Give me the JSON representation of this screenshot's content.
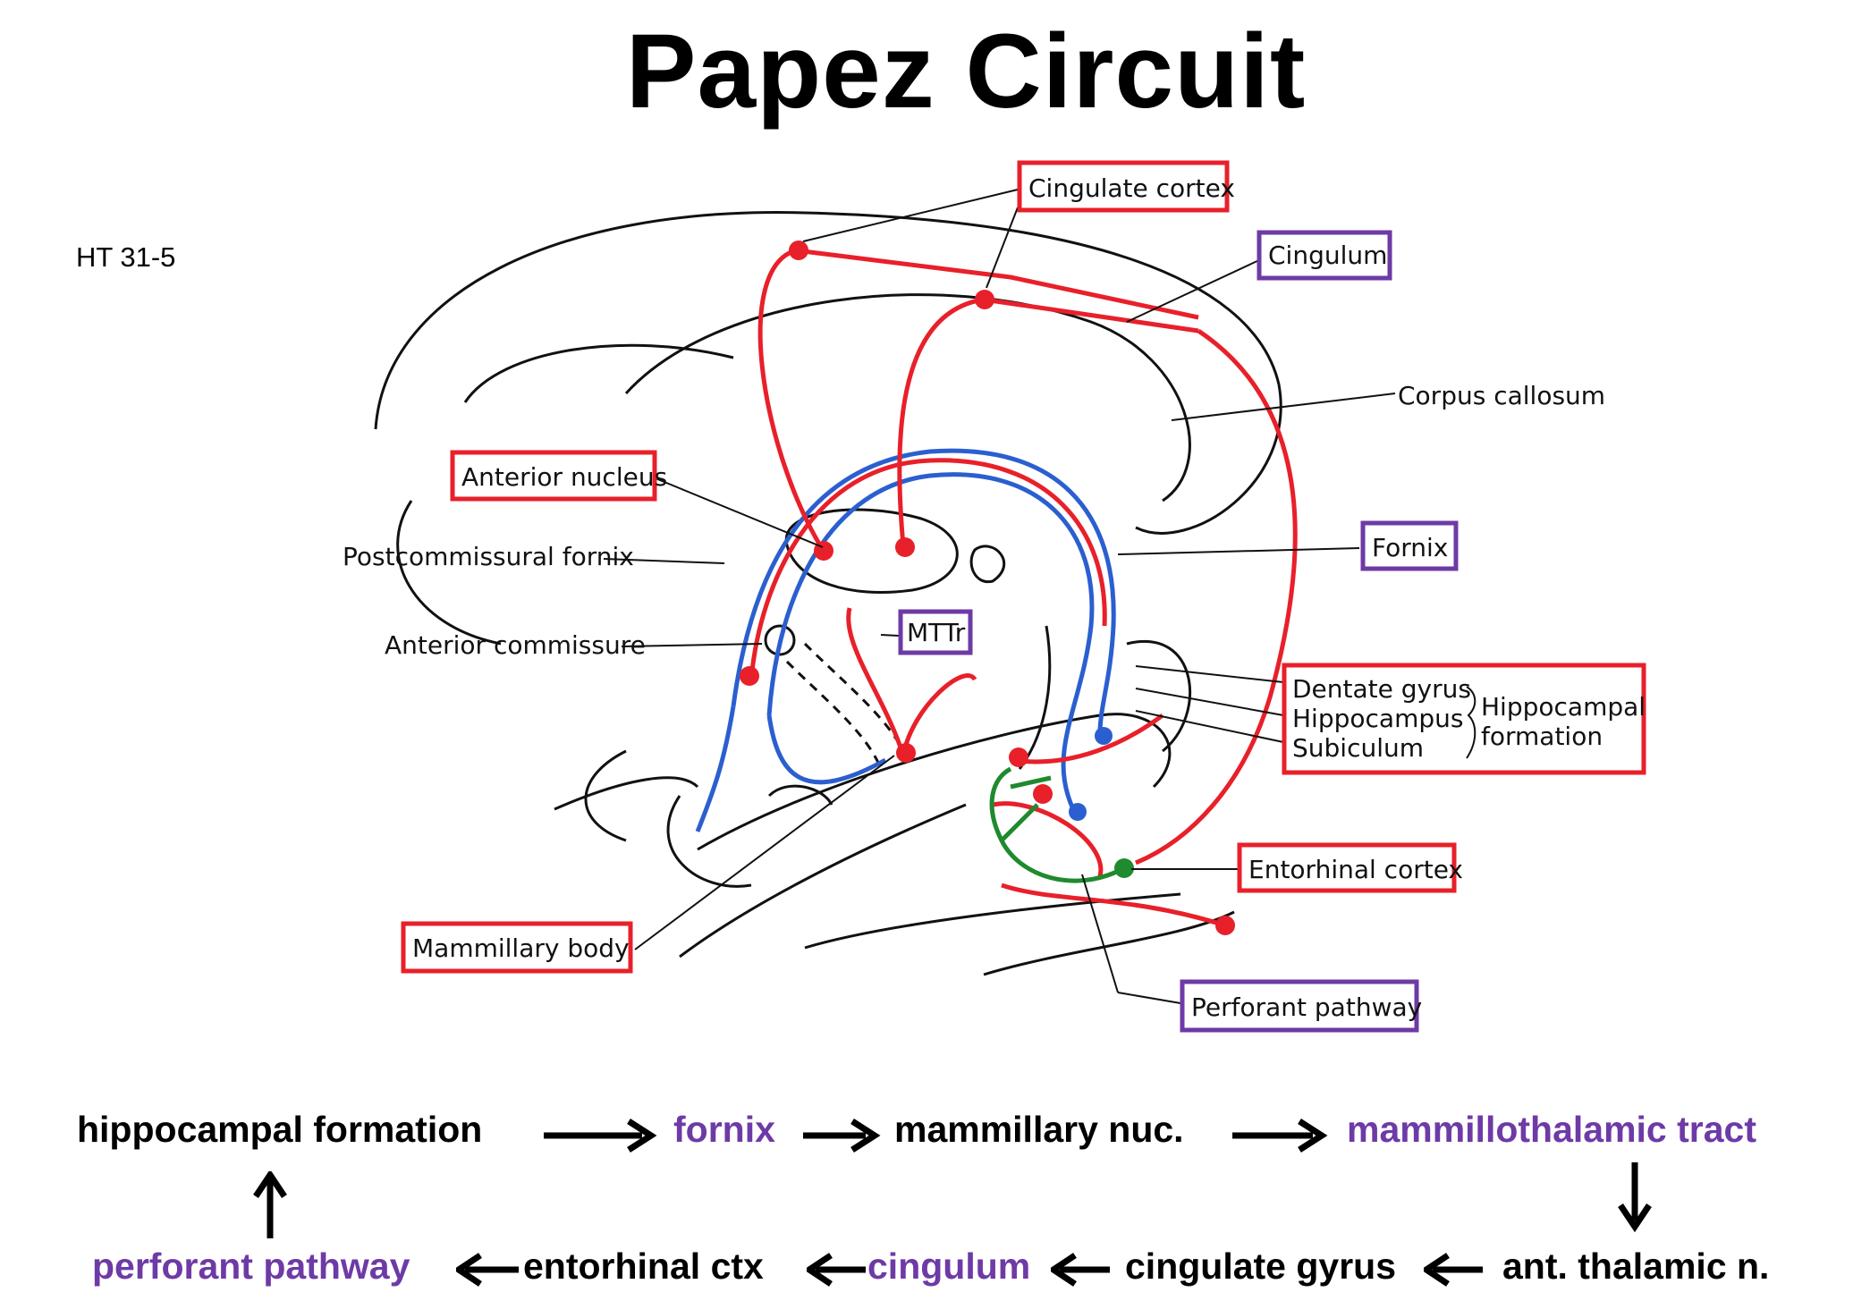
{
  "title": "Papez Circuit",
  "ref": "HT 31-5",
  "colors": {
    "red": "#e8202a",
    "purple": "#6e3aa6",
    "blue": "#2b5fd0",
    "green": "#1f8a2e"
  },
  "labels": {
    "cingulate_cortex": "Cingulate cortex",
    "cingulum": "Cingulum",
    "corpus_callosum": "Corpus callosum",
    "anterior_nucleus": "Anterior nucleus",
    "postcommissural_fornix": "Postcommissural fornix",
    "fornix": "Fornix",
    "mttr": "MTTr",
    "anterior_commissure": "Anterior commissure",
    "dentate_gyrus": "Dentate gyrus",
    "hippocampus": "Hippocampus",
    "subiculum": "Subiculum",
    "hippocampal": "Hippocampal",
    "formation": "formation",
    "entorhinal_cortex": "Entorhinal cortex",
    "mammillary_body": "Mammillary body",
    "perforant_pathway": "Perforant pathway"
  },
  "flow": {
    "hippocampal_formation": "hippocampal formation",
    "fornix": "fornix",
    "mammillary_nuc": "mammillary nuc.",
    "mammillothalamic_tract": "mammillothalamic tract",
    "ant_thalamic_n": "ant. thalamic n.",
    "cingulate_gyrus": "cingulate gyrus",
    "cingulum": "cingulum",
    "entorhinal_ctx": "entorhinal ctx",
    "perforant_pathway": "perforant pathway"
  }
}
